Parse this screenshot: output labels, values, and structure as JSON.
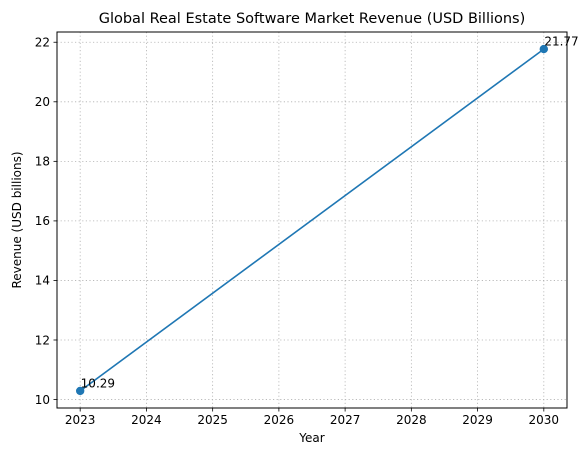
{
  "chart_data": {
    "type": "line",
    "title": "Global Real Estate Software Market Revenue (USD Billions)",
    "xlabel": "Year",
    "ylabel": "Revenue (USD billions)",
    "x": [
      2023,
      2030
    ],
    "series": [
      {
        "values": [
          10.29,
          21.77
        ],
        "color": "#1f77b4",
        "marker": "circle"
      }
    ],
    "data_labels": [
      "10.29",
      "21.77"
    ],
    "xlim": [
      2022.65,
      2030.35
    ],
    "ylim": [
      9.716,
      22.344
    ],
    "xticks": [
      2023,
      2024,
      2025,
      2026,
      2027,
      2028,
      2029,
      2030
    ],
    "yticks": [
      10,
      12,
      14,
      16,
      18,
      20,
      22
    ],
    "grid": true,
    "grid_style": "dotted",
    "legend": false
  }
}
